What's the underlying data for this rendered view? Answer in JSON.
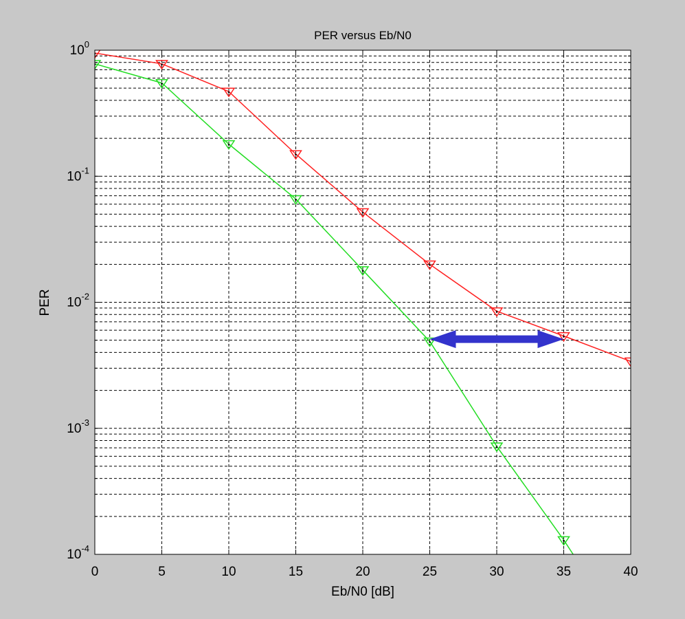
{
  "colors": {
    "figure_bg": "#c8c8c8",
    "axes_bg": "#ffffff",
    "series_red": "#ff2020",
    "series_green": "#22dd22",
    "arrow": "#3333cc",
    "grid": "#000000"
  },
  "chart_data": {
    "type": "line",
    "title": "PER versus Eb/N0",
    "xlabel": "Eb/N0 [dB]",
    "ylabel": "PER",
    "xlim": [
      0,
      40
    ],
    "ylim": [
      0.0001,
      1
    ],
    "yscale": "log",
    "grid": true,
    "grid_style": "dashed, major and minor on y",
    "marker": "downward-triangle",
    "x_ticks": [
      "0",
      "5",
      "10",
      "15",
      "20",
      "25",
      "30",
      "35",
      "40"
    ],
    "y_ticks": [
      {
        "base": "10",
        "exp": "-4",
        "value": 0.0001
      },
      {
        "base": "10",
        "exp": "-3",
        "value": 0.001
      },
      {
        "base": "10",
        "exp": "-2",
        "value": 0.01
      },
      {
        "base": "10",
        "exp": "-1",
        "value": 0.1
      },
      {
        "base": "10",
        "exp": "0",
        "value": 1
      }
    ],
    "series": [
      {
        "color": "#ff2020",
        "x": [
          0,
          5,
          10,
          15,
          20,
          25,
          30,
          35,
          40
        ],
        "values": [
          0.95,
          0.78,
          0.47,
          0.15,
          0.052,
          0.02,
          0.0085,
          0.0054,
          0.0034
        ]
      },
      {
        "color": "#22dd22",
        "x": [
          0,
          5,
          10,
          15,
          20,
          25,
          30,
          35,
          35.7
        ],
        "values": [
          0.78,
          0.55,
          0.18,
          0.066,
          0.018,
          0.0049,
          0.00072,
          0.00013,
          0.0001
        ],
        "marker_count": 8
      }
    ],
    "annotations": [
      {
        "type": "double-arrow",
        "color": "#3333cc",
        "from": {
          "x": 25,
          "y": 0.0051
        },
        "to": {
          "x": 35,
          "y": 0.0051
        }
      }
    ]
  }
}
